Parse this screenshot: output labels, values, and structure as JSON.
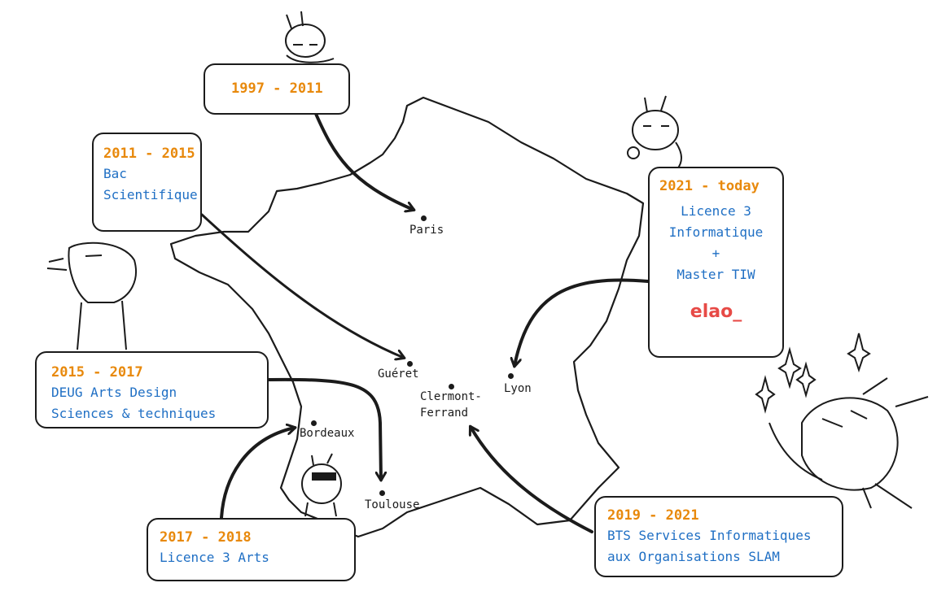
{
  "cities": {
    "paris": "Paris",
    "gueret": "Guéret",
    "clermont_1": "Clermont-",
    "clermont_2": "Ferrand",
    "lyon": "Lyon",
    "bordeaux": "Bordeaux",
    "toulouse": "Toulouse"
  },
  "boxes": {
    "b1997": {
      "period": "1997 - 2011"
    },
    "b2011": {
      "period": "2011 - 2015",
      "line1": "Bac",
      "line2": "Scientifique"
    },
    "b2015": {
      "period": "2015 - 2017",
      "line1": "DEUG Arts Design",
      "line2": "Sciences & techniques"
    },
    "b2017": {
      "period": "2017 - 2018",
      "line1": "Licence 3 Arts"
    },
    "b2019": {
      "period": "2019 - 2021",
      "line1": "BTS Services Informatiques",
      "line2": "aux Organisations SLAM"
    },
    "b2021": {
      "period": "2021 - today",
      "line1": "Licence 3",
      "line2": "Informatique",
      "line3": "+",
      "line4": "Master TIW",
      "logo": "elao_"
    }
  },
  "colors": {
    "period": "#e8890c",
    "label": "#1f6fc4",
    "logo": "#e74a46",
    "ink": "#1b1b1b"
  }
}
